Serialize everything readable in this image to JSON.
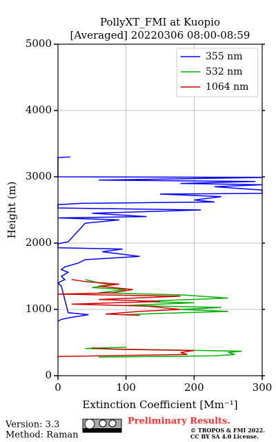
{
  "chart_data": {
    "type": "line",
    "title": [
      "PollyXT_FMI at Kuopio",
      "[Averaged] 20220306 08:00-08:59"
    ],
    "xlabel": "Extinction Coefficient [Mm⁻¹]",
    "ylabel": "Height (m)",
    "xlim": [
      0,
      300
    ],
    "xticks": [
      0,
      100,
      200,
      300
    ],
    "ylim": [
      0,
      5000
    ],
    "yticks": [
      0,
      1000,
      2000,
      3000,
      4000,
      5000
    ],
    "grid": true,
    "legend": "upper right",
    "series": [
      {
        "name": "355 nm",
        "color": "#0000ff",
        "y": [
          3300,
          3290,
          3000,
          2990,
          2950,
          2930,
          2900,
          2880,
          2850,
          2800,
          2750,
          2740,
          2700,
          2650,
          2620,
          2600,
          2580,
          2530,
          2500,
          2450,
          2400,
          2380,
          2350,
          2300,
          2020,
          1990,
          1930,
          1910,
          1870,
          1800,
          1750,
          1700,
          1640,
          1600,
          1560,
          1500,
          1450,
          1400,
          1350,
          950,
          920,
          880,
          850,
          820
        ],
        "values": [
          18,
          0,
          0,
          300,
          60,
          290,
          180,
          300,
          230,
          300,
          300,
          150,
          240,
          200,
          230,
          35,
          0,
          0,
          210,
          50,
          130,
          0,
          90,
          40,
          15,
          0,
          0,
          95,
          65,
          120,
          40,
          30,
          10,
          5,
          15,
          5,
          10,
          0,
          5,
          15,
          45,
          20,
          5,
          0
        ]
      },
      {
        "name": "532 nm",
        "color": "#00b000",
        "y": [
          1450,
          1400,
          1370,
          1330,
          1300,
          1250,
          1220,
          1170,
          1120,
          1100,
          1060,
          1030,
          1000,
          970,
          940,
          920,
          null,
          430,
          410,
          390,
          370,
          350,
          320,
          300,
          280
        ],
        "values": [
          40,
          60,
          80,
          50,
          100,
          60,
          180,
          250,
          120,
          200,
          100,
          240,
          180,
          250,
          150,
          100,
          null,
          100,
          40,
          150,
          270,
          250,
          260,
          230,
          60
        ]
      },
      {
        "name": "1064 nm",
        "color": "#d00000",
        "y": [
          1450,
          1420,
          1380,
          1350,
          1300,
          1250,
          1230,
          1200,
          1150,
          1120,
          1080,
          1050,
          1000,
          970,
          930,
          910,
          null,
          420,
          400,
          380,
          350,
          320,
          290
        ],
        "values": [
          20,
          40,
          90,
          60,
          110,
          80,
          0,
          180,
          60,
          150,
          20,
          130,
          180,
          120,
          70,
          120,
          null,
          50,
          80,
          200,
          180,
          190,
          0
        ]
      }
    ],
    "footer": {
      "version": "Version: 3.3",
      "method": "Method: Raman",
      "status": "Preliminary Results.",
      "copyright": "© TROPOS & FMI 2022.",
      "license": "CC BY SA 4.0 License."
    }
  }
}
